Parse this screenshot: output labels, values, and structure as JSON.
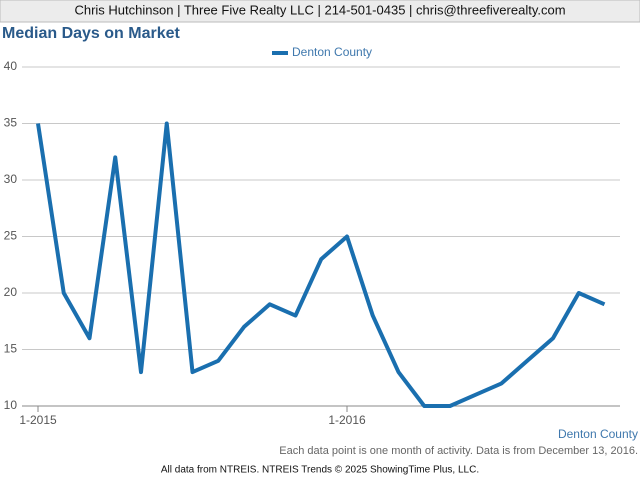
{
  "chart_data": {
    "type": "line",
    "header": "Chris Hutchinson | Three Five Realty LLC | 214-501-0435 | chris@threefiverealty.com",
    "title": "Median Days on Market",
    "xlabel": "Denton County",
    "note": "Each data point is one month of activity. Data is from December 13, 2016.",
    "source": "All data from NTREIS. NTREIS Trends © 2025 ShowingTime Plus, LLC.",
    "categories": [
      "1-2015",
      null,
      null,
      null,
      null,
      null,
      null,
      null,
      null,
      null,
      null,
      null,
      "1-2016",
      null,
      null,
      null,
      null,
      null,
      null,
      null,
      null,
      null,
      null
    ],
    "series": [
      {
        "name": "Denton County",
        "color": "#1a6faf",
        "values": [
          35,
          20,
          16,
          32,
          13,
          35,
          13,
          14,
          17,
          19,
          18,
          23,
          25,
          18,
          13,
          10,
          10,
          11,
          12,
          14,
          16,
          20,
          19
        ]
      }
    ],
    "ylim": [
      10,
      40
    ],
    "yticks": [
      10,
      15,
      20,
      25,
      30,
      35,
      40
    ],
    "grid": true,
    "legend": "top"
  }
}
